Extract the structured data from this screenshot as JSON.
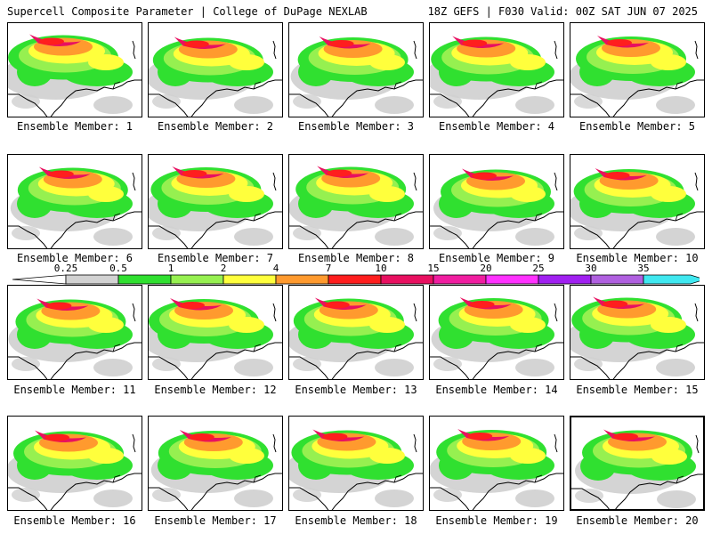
{
  "header": {
    "left": "Supercell Composite Parameter | College of DuPage NEXLAB",
    "right": "18Z GEFS | F030 Valid: 00Z SAT JUN 07 2025"
  },
  "panels": [
    {
      "label": "Ensemble Member: 1"
    },
    {
      "label": "Ensemble Member: 2"
    },
    {
      "label": "Ensemble Member: 3"
    },
    {
      "label": "Ensemble Member: 4"
    },
    {
      "label": "Ensemble Member: 5"
    },
    {
      "label": "Ensemble Member: 6"
    },
    {
      "label": "Ensemble Member: 7"
    },
    {
      "label": "Ensemble Member: 8"
    },
    {
      "label": "Ensemble Member: 9"
    },
    {
      "label": "Ensemble Member: 10"
    },
    {
      "label": "Ensemble Member: 11"
    },
    {
      "label": "Ensemble Member: 12"
    },
    {
      "label": "Ensemble Member: 13"
    },
    {
      "label": "Ensemble Member: 14"
    },
    {
      "label": "Ensemble Member: 15"
    },
    {
      "label": "Ensemble Member: 16"
    },
    {
      "label": "Ensemble Member: 17"
    },
    {
      "label": "Ensemble Member: 18"
    },
    {
      "label": "Ensemble Member: 19"
    },
    {
      "label": "Ensemble Member: 20",
      "selected": true
    }
  ],
  "colorbar": {
    "ticks": [
      "0.25",
      "0.5",
      "1",
      "2",
      "4",
      "7",
      "10",
      "15",
      "20",
      "25",
      "30",
      "35"
    ],
    "colors": [
      "#d2d2d2",
      "#30e030",
      "#96f050",
      "#ffff3c",
      "#ff9a2e",
      "#ff1e1e",
      "#e81060",
      "#f01ea0",
      "#ff32ff",
      "#a020f0",
      "#b060e0",
      "#40e8f0"
    ]
  }
}
